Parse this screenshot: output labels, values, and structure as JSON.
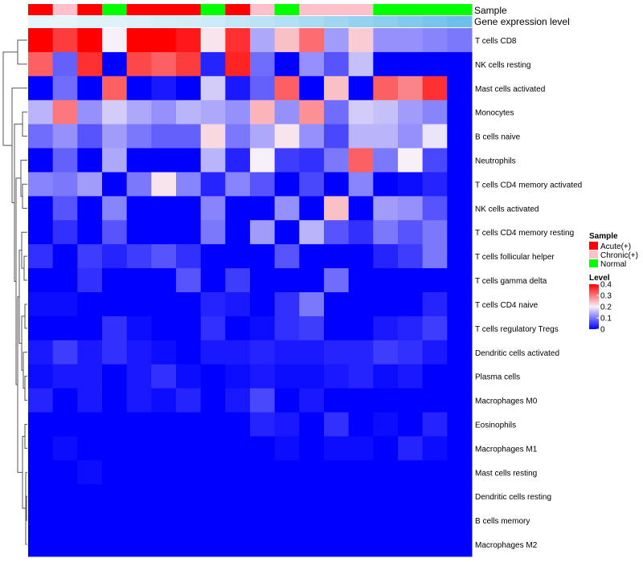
{
  "chart_data": {
    "type": "heatmap",
    "title": "",
    "rows": [
      "T cells CD8",
      "NK cells resting",
      "Mast cells activated",
      "Monocytes",
      "B cells naive",
      "Neutrophils",
      "T cells CD4 memory activated",
      "NK cells activated",
      "T cells CD4 memory resting",
      "T cells follicular helper",
      "T cells gamma delta",
      "T cells CD4 naive",
      "T cells regulatory  Tregs",
      "Dendritic cells activated",
      "Plasma cells",
      "Macrophages M0",
      "Eosinophils",
      "Macrophages M1",
      "Mast cells resting",
      "Dendritic cells resting",
      "B cells memory",
      "Macrophages M2"
    ],
    "column_annotations": {
      "sample_label": "Sample",
      "expression_label": "Gene expression level",
      "sample": [
        "Acute(+)",
        "Chronic(+)",
        "Acute(+)",
        "Normal",
        "Acute(+)",
        "Acute(+)",
        "Acute(+)",
        "Normal",
        "Acute(+)",
        "Chronic(+)",
        "Normal",
        "Chronic(+)",
        "Chronic(+)",
        "Chronic(+)",
        "Normal",
        "Normal",
        "Normal",
        "Normal"
      ],
      "expression_shades": [
        "#e6f5fb",
        "#e6f5fb",
        "#dff2fa",
        "#dff2fa",
        "#dbf0f9",
        "#d6eef8",
        "#d2ecf8",
        "#cceaf7",
        "#c4e6f6",
        "#bce3f5",
        "#b3dff4",
        "#a9dbf3",
        "#9fd7f2",
        "#95d2f1",
        "#8bcef0",
        "#81c9ef",
        "#77c5ee",
        "#6dc0ed"
      ]
    },
    "values": [
      [
        0.4,
        0.35,
        0.4,
        0.2,
        0.4,
        0.4,
        0.38,
        0.21,
        0.36,
        0.14,
        0.24,
        0.31,
        0.13,
        0.23,
        0.12,
        0.12,
        0.11,
        0.1
      ],
      [
        0.32,
        0.08,
        0.36,
        0.0,
        0.34,
        0.32,
        0.35,
        0.03,
        0.37,
        0.09,
        0.0,
        0.12,
        0.07,
        0.16,
        0.0,
        0.0,
        0.0,
        0.0
      ],
      [
        0.0,
        0.09,
        0.0,
        0.32,
        0.0,
        0.02,
        0.0,
        0.17,
        0.02,
        0.08,
        0.32,
        0.0,
        0.24,
        0.0,
        0.32,
        0.29,
        0.36,
        0.0
      ],
      [
        0.15,
        0.3,
        0.12,
        0.17,
        0.14,
        0.12,
        0.15,
        0.14,
        0.12,
        0.25,
        0.12,
        0.28,
        0.09,
        0.17,
        0.16,
        0.13,
        0.11,
        0.0
      ],
      [
        0.09,
        0.12,
        0.07,
        0.13,
        0.1,
        0.08,
        0.08,
        0.22,
        0.1,
        0.14,
        0.21,
        0.12,
        0.06,
        0.15,
        0.15,
        0.12,
        0.19,
        0.0
      ],
      [
        0.0,
        0.08,
        0.0,
        0.14,
        0.0,
        0.0,
        0.0,
        0.15,
        0.03,
        0.2,
        0.05,
        0.04,
        0.1,
        0.32,
        0.1,
        0.2,
        0.06,
        0.0
      ],
      [
        0.11,
        0.1,
        0.13,
        0.0,
        0.1,
        0.21,
        0.11,
        0.03,
        0.11,
        0.07,
        0.0,
        0.06,
        0.0,
        0.11,
        0.0,
        0.01,
        0.03,
        0.0
      ],
      [
        0.0,
        0.07,
        0.0,
        0.11,
        0.0,
        0.0,
        0.0,
        0.11,
        0.0,
        0.0,
        0.12,
        0.0,
        0.24,
        0.0,
        0.13,
        0.12,
        0.07,
        0.0
      ],
      [
        0.0,
        0.04,
        0.0,
        0.07,
        0.0,
        0.0,
        0.0,
        0.1,
        0.0,
        0.13,
        0.0,
        0.15,
        0.07,
        0.04,
        0.1,
        0.07,
        0.1,
        0.0
      ],
      [
        0.04,
        0.0,
        0.05,
        0.03,
        0.05,
        0.07,
        0.04,
        0.0,
        0.0,
        0.0,
        0.07,
        0.0,
        0.0,
        0.0,
        0.03,
        0.05,
        0.1,
        0.0
      ],
      [
        0.0,
        0.0,
        0.04,
        0.0,
        0.0,
        0.0,
        0.07,
        0.0,
        0.05,
        0.0,
        0.0,
        0.0,
        0.09,
        0.0,
        0.0,
        0.0,
        0.0,
        0.0
      ],
      [
        0.01,
        0.01,
        0.0,
        0.0,
        0.0,
        0.0,
        0.0,
        0.03,
        0.02,
        0.0,
        0.04,
        0.1,
        0.0,
        0.0,
        0.0,
        0.0,
        0.03,
        0.0
      ],
      [
        0.0,
        0.0,
        0.0,
        0.04,
        0.01,
        0.0,
        0.0,
        0.04,
        0.0,
        0.01,
        0.04,
        0.05,
        0.0,
        0.0,
        0.02,
        0.03,
        0.05,
        0.0
      ],
      [
        0.02,
        0.05,
        0.02,
        0.04,
        0.02,
        0.01,
        0.0,
        0.02,
        0.02,
        0.03,
        0.02,
        0.02,
        0.03,
        0.03,
        0.05,
        0.04,
        0.02,
        0.0
      ],
      [
        0.01,
        0.02,
        0.02,
        0.0,
        0.02,
        0.04,
        0.01,
        0.0,
        0.01,
        0.02,
        0.01,
        0.01,
        0.02,
        0.03,
        0.01,
        0.02,
        0.0,
        0.0
      ],
      [
        0.03,
        0.0,
        0.02,
        0.0,
        0.02,
        0.01,
        0.03,
        0.0,
        0.02,
        0.06,
        0.0,
        0.02,
        0.0,
        0.0,
        0.0,
        0.0,
        0.0,
        0.0
      ],
      [
        0.0,
        0.0,
        0.0,
        0.0,
        0.0,
        0.0,
        0.0,
        0.0,
        0.0,
        0.03,
        0.02,
        0.0,
        0.04,
        0.0,
        0.01,
        0.0,
        0.03,
        0.0
      ],
      [
        0.0,
        0.01,
        0.0,
        0.0,
        0.0,
        0.0,
        0.0,
        0.0,
        0.0,
        0.0,
        0.01,
        0.0,
        0.01,
        0.01,
        0.0,
        0.03,
        0.01,
        0.0
      ],
      [
        0.0,
        0.0,
        0.01,
        0.0,
        0.0,
        0.0,
        0.0,
        0.0,
        0.0,
        0.0,
        0.0,
        0.0,
        0.0,
        0.0,
        0.0,
        0.0,
        0.0,
        0.0
      ],
      [
        0.0,
        0.0,
        0.0,
        0.0,
        0.0,
        0.0,
        0.0,
        0.0,
        0.0,
        0.0,
        0.0,
        0.0,
        0.0,
        0.0,
        0.0,
        0.0,
        0.0,
        0.0
      ],
      [
        0.0,
        0.0,
        0.0,
        0.0,
        0.0,
        0.0,
        0.0,
        0.0,
        0.0,
        0.0,
        0.0,
        0.0,
        0.0,
        0.0,
        0.0,
        0.0,
        0.0,
        0.0
      ],
      [
        0.0,
        0.0,
        0.0,
        0.0,
        0.0,
        0.0,
        0.0,
        0.0,
        0.0,
        0.0,
        0.0,
        0.0,
        0.0,
        0.0,
        0.0,
        0.0,
        0.0,
        0.0
      ]
    ],
    "color_scale": {
      "min": 0,
      "mid": 0.2,
      "max": 0.4,
      "low_color": "#0000ff",
      "mid_color": "#f8f0f8",
      "high_color": "#ff0000"
    },
    "legend": {
      "sample_title": "Sample",
      "sample_entries": [
        {
          "label": "Acute(+)",
          "color": "#ff0000"
        },
        {
          "label": "Chronic(+)",
          "color": "#ffc0cb"
        },
        {
          "label": "Normal",
          "color": "#00ff00"
        }
      ],
      "level_title": "Level",
      "level_ticks": [
        {
          "value": 0.4,
          "label": "0.4"
        },
        {
          "value": 0.3,
          "label": "0.3"
        },
        {
          "value": 0.2,
          "label": "0.2"
        },
        {
          "value": 0.1,
          "label": "0.1"
        },
        {
          "value": 0,
          "label": "0"
        }
      ],
      "placement": "right"
    },
    "row_dendrogram": "left"
  }
}
